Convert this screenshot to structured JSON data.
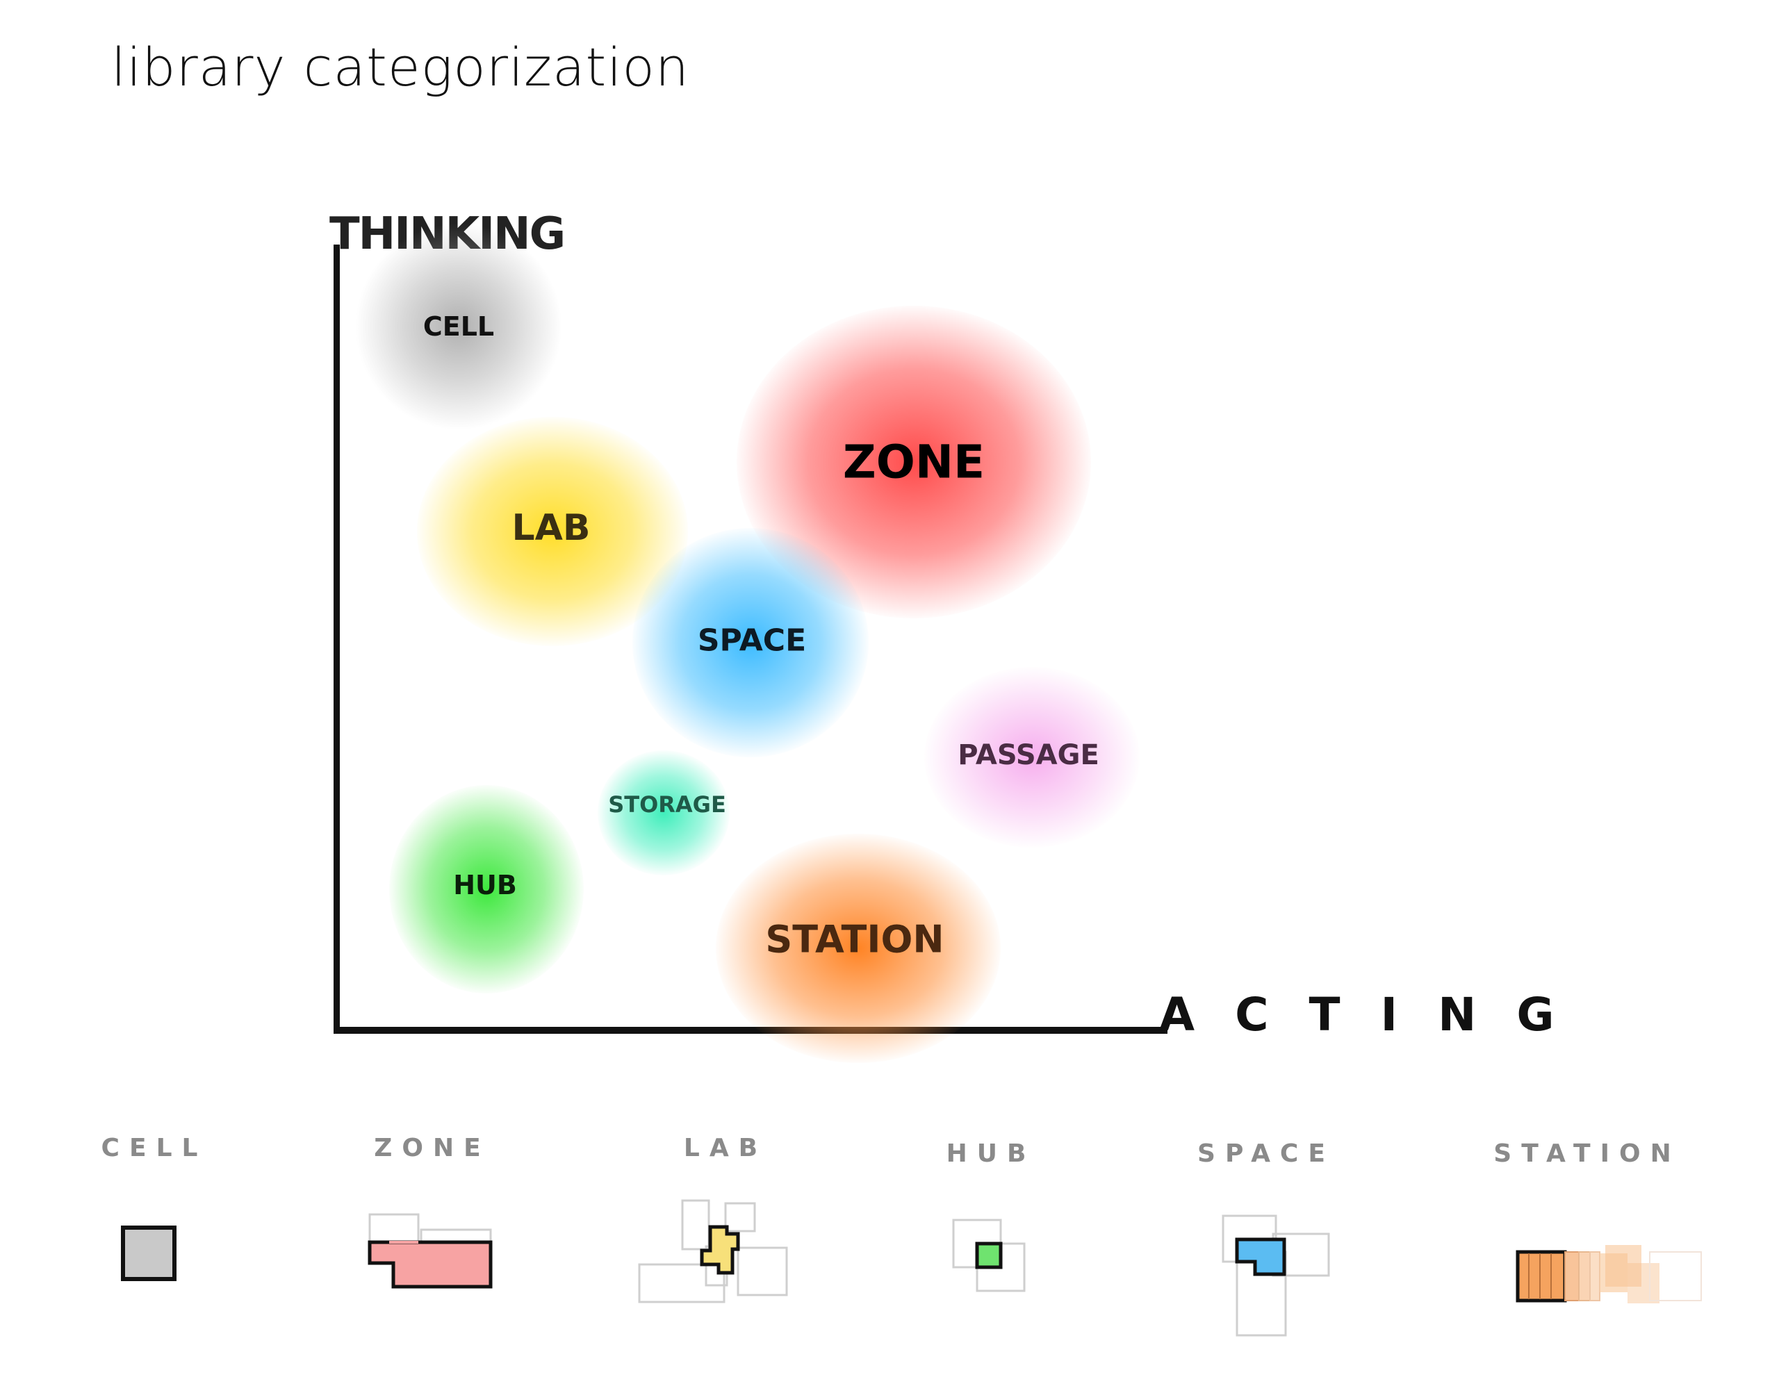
{
  "title": "library categorization",
  "axes": {
    "y_label": "THINKING",
    "x_label": "ACTING"
  },
  "categories": [
    {
      "name": "CELL",
      "color": "#9e9e9e"
    },
    {
      "name": "ZONE",
      "color": "#ff4a4a"
    },
    {
      "name": "LAB",
      "color": "#ffdd2a"
    },
    {
      "name": "SPACE",
      "color": "#33b8ff"
    },
    {
      "name": "PASSAGE",
      "color": "#f7a6ec"
    },
    {
      "name": "STORAGE",
      "color": "#26e8b0"
    },
    {
      "name": "HUB",
      "color": "#2ee62e"
    },
    {
      "name": "STATION",
      "color": "#ff7f1a"
    }
  ],
  "legend": [
    {
      "label": "CELL",
      "fill": "#c9c9c9"
    },
    {
      "label": "ZONE",
      "fill": "#f7a3a3"
    },
    {
      "label": "LAB",
      "fill": "#f7e07a"
    },
    {
      "label": "HUB",
      "fill": "#6fe36f"
    },
    {
      "label": "SPACE",
      "fill": "#5bbcf2"
    },
    {
      "label": "STATION",
      "fill": "#f5a35f"
    }
  ]
}
